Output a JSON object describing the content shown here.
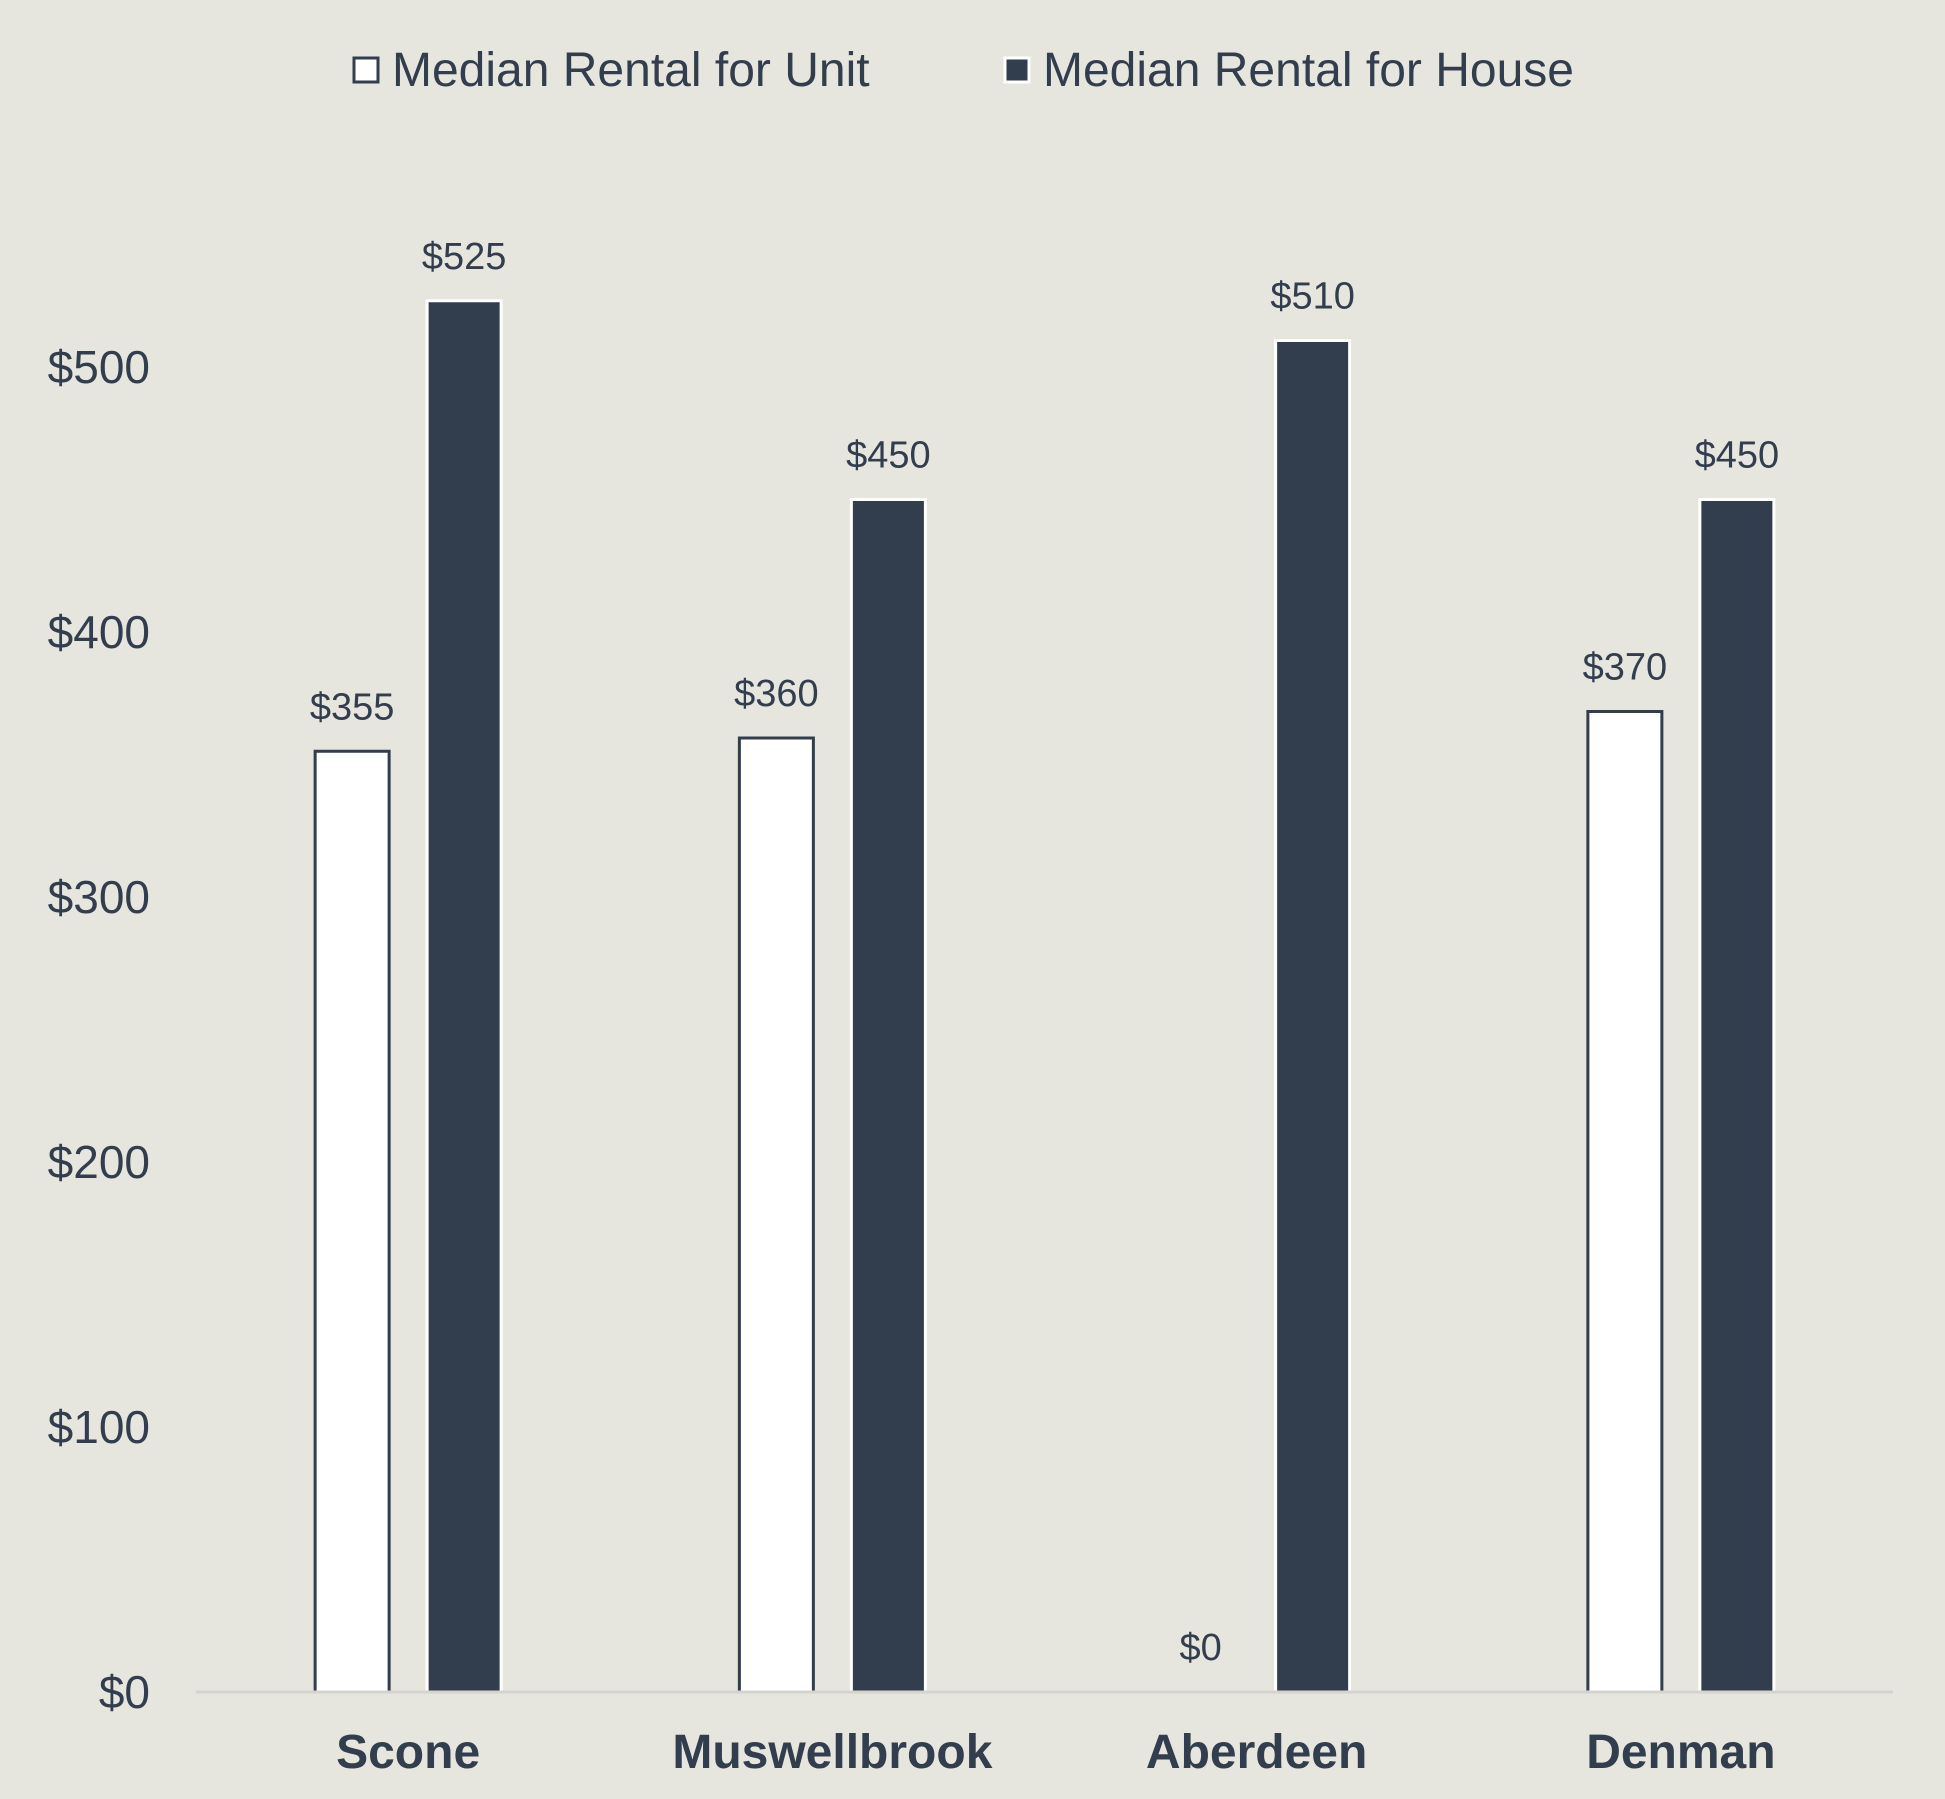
{
  "chart_data": {
    "type": "bar",
    "categories": [
      "Scone",
      "Muswellbrook",
      "Aberdeen",
      "Denman"
    ],
    "series": [
      {
        "name": "Median Rental for Unit",
        "values": [
          355,
          360,
          0,
          370
        ],
        "labels": [
          "$355",
          "$360",
          "$0",
          "$370"
        ],
        "color": "#ffffff",
        "stroke": "#323d4e"
      },
      {
        "name": "Median Rental for House",
        "values": [
          525,
          450,
          510,
          450
        ],
        "labels": [
          "$525",
          "$450",
          "$510",
          "$450"
        ],
        "color": "#323d4e",
        "stroke": "#ffffff"
      }
    ],
    "yticks": [
      0,
      100,
      200,
      300,
      400,
      500
    ],
    "ytick_labels": [
      "$0",
      "$100",
      "$200",
      "$300",
      "$400",
      "$500"
    ],
    "ylim": [
      0,
      560
    ],
    "grid": false,
    "legend_position": "top-center",
    "background": "#e6e6de",
    "axis_color": "#d4d4cf"
  }
}
